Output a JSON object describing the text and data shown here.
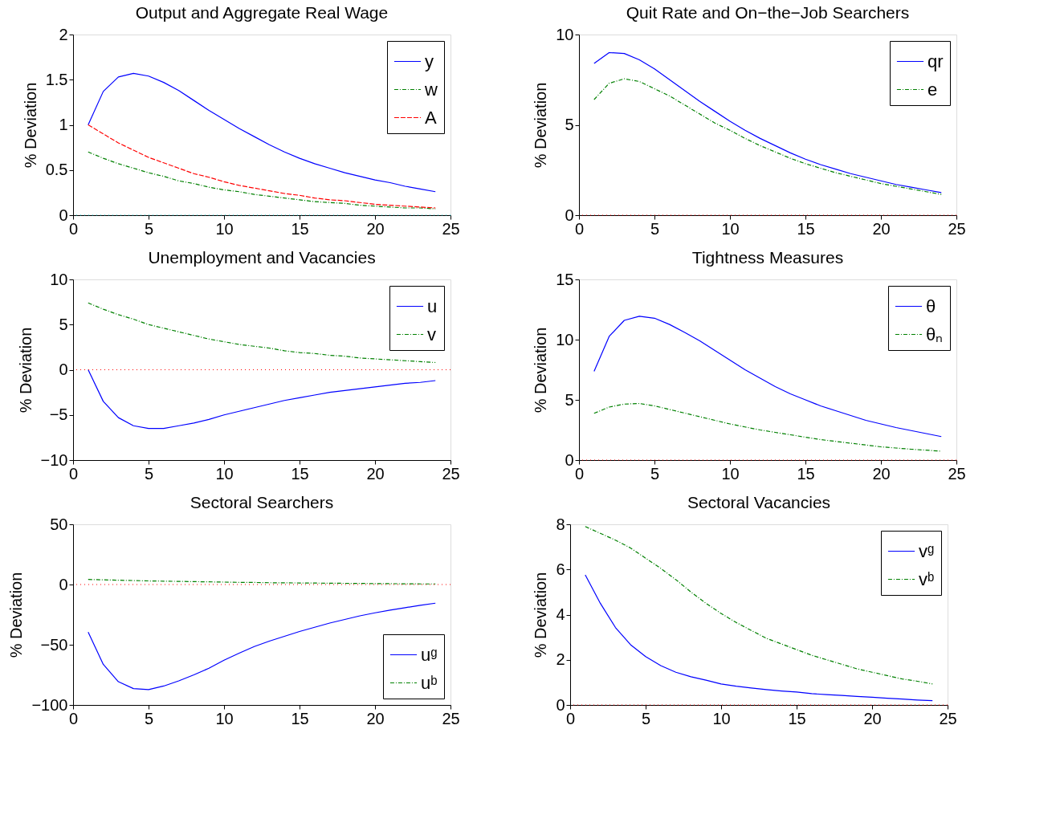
{
  "chart_data": [
    {
      "type": "line",
      "title": "Output and Aggregate Real Wage",
      "ylabel": "% Deviation",
      "x": [
        1,
        2,
        3,
        4,
        5,
        6,
        7,
        8,
        9,
        10,
        11,
        12,
        13,
        14,
        15,
        16,
        17,
        18,
        19,
        20,
        21,
        22,
        23,
        24
      ],
      "xlim": [
        0,
        25
      ],
      "xticks": [
        0,
        5,
        10,
        15,
        20,
        25
      ],
      "ylim": [
        0,
        2
      ],
      "yticks": [
        0,
        0.5,
        1,
        1.5,
        2
      ],
      "grid": false,
      "legend": "top right",
      "marker": "none",
      "series": [
        {
          "name": "y",
          "color": "#0000ff",
          "line_style": "solid",
          "values": [
            1.0,
            1.37,
            1.53,
            1.57,
            1.54,
            1.47,
            1.38,
            1.27,
            1.16,
            1.06,
            0.96,
            0.87,
            0.78,
            0.7,
            0.63,
            0.57,
            0.52,
            0.47,
            0.43,
            0.39,
            0.36,
            0.32,
            0.29,
            0.26
          ]
        },
        {
          "name": "w",
          "color": "#008000",
          "line_style": "dashdot",
          "values": [
            0.7,
            0.63,
            0.57,
            0.52,
            0.47,
            0.43,
            0.38,
            0.35,
            0.31,
            0.28,
            0.26,
            0.23,
            0.21,
            0.19,
            0.17,
            0.15,
            0.14,
            0.13,
            0.11,
            0.1,
            0.09,
            0.08,
            0.08,
            0.07
          ]
        },
        {
          "name": "A",
          "color": "#ff0000",
          "line_style": "dashed",
          "values": [
            1.0,
            0.9,
            0.8,
            0.72,
            0.64,
            0.58,
            0.52,
            0.46,
            0.42,
            0.37,
            0.33,
            0.3,
            0.27,
            0.24,
            0.22,
            0.19,
            0.17,
            0.16,
            0.14,
            0.12,
            0.11,
            0.1,
            0.09,
            0.08
          ]
        }
      ],
      "ref_lines": [
        {
          "axis": "y",
          "value": 0,
          "color": "#00bfbf",
          "line_style": "dotted"
        }
      ]
    },
    {
      "type": "line",
      "title": "Quit Rate and On−the−Job Searchers",
      "ylabel": "% Deviation",
      "x": [
        1,
        2,
        3,
        4,
        5,
        6,
        7,
        8,
        9,
        10,
        11,
        12,
        13,
        14,
        15,
        16,
        17,
        18,
        19,
        20,
        21,
        22,
        23,
        24
      ],
      "xlim": [
        0,
        25
      ],
      "xticks": [
        0,
        5,
        10,
        15,
        20,
        25
      ],
      "ylim": [
        0,
        10
      ],
      "yticks": [
        0,
        5,
        10
      ],
      "grid": false,
      "legend": "top right",
      "marker": "none",
      "series": [
        {
          "name": "qr",
          "color": "#0000ff",
          "line_style": "solid",
          "values": [
            8.4,
            9.0,
            8.95,
            8.6,
            8.1,
            7.5,
            6.9,
            6.3,
            5.75,
            5.2,
            4.7,
            4.25,
            3.85,
            3.45,
            3.1,
            2.8,
            2.55,
            2.3,
            2.1,
            1.9,
            1.7,
            1.55,
            1.4,
            1.25
          ]
        },
        {
          "name": "e",
          "color": "#008000",
          "line_style": "dashdot",
          "values": [
            6.4,
            7.3,
            7.55,
            7.4,
            7.0,
            6.6,
            6.1,
            5.6,
            5.1,
            4.7,
            4.25,
            3.85,
            3.5,
            3.15,
            2.85,
            2.6,
            2.35,
            2.15,
            1.95,
            1.75,
            1.6,
            1.45,
            1.3,
            1.15
          ]
        }
      ],
      "ref_lines": [
        {
          "axis": "y",
          "value": 0,
          "color": "#ff0000",
          "line_style": "dotted"
        }
      ]
    },
    {
      "type": "line",
      "title": "Unemployment and Vacancies",
      "ylabel": "% Deviation",
      "x": [
        1,
        2,
        3,
        4,
        5,
        6,
        7,
        8,
        9,
        10,
        11,
        12,
        13,
        14,
        15,
        16,
        17,
        18,
        19,
        20,
        21,
        22,
        23,
        24
      ],
      "xlim": [
        0,
        25
      ],
      "xticks": [
        0,
        5,
        10,
        15,
        20,
        25
      ],
      "ylim": [
        -10,
        10
      ],
      "yticks": [
        -10,
        -5,
        0,
        5,
        10
      ],
      "grid": false,
      "legend": "top right",
      "marker": "none",
      "series": [
        {
          "name": "u",
          "color": "#0000ff",
          "line_style": "solid",
          "values": [
            0,
            -3.5,
            -5.3,
            -6.2,
            -6.5,
            -6.5,
            -6.2,
            -5.9,
            -5.5,
            -5.0,
            -4.6,
            -4.2,
            -3.8,
            -3.4,
            -3.1,
            -2.8,
            -2.5,
            -2.3,
            -2.1,
            -1.9,
            -1.7,
            -1.5,
            -1.4,
            -1.2
          ]
        },
        {
          "name": "v",
          "color": "#008000",
          "line_style": "dashdot",
          "values": [
            7.4,
            6.7,
            6.1,
            5.6,
            5.0,
            4.6,
            4.2,
            3.8,
            3.4,
            3.1,
            2.8,
            2.6,
            2.4,
            2.1,
            1.9,
            1.8,
            1.6,
            1.5,
            1.3,
            1.2,
            1.1,
            1.0,
            0.9,
            0.8
          ]
        }
      ],
      "ref_lines": [
        {
          "axis": "y",
          "value": 0,
          "color": "#ff0000",
          "line_style": "dotted"
        }
      ]
    },
    {
      "type": "line",
      "title": "Tightness Measures",
      "ylabel": "% Deviation",
      "x": [
        1,
        2,
        3,
        4,
        5,
        6,
        7,
        8,
        9,
        10,
        11,
        12,
        13,
        14,
        15,
        16,
        17,
        18,
        19,
        20,
        21,
        22,
        23,
        24
      ],
      "xlim": [
        0,
        25
      ],
      "xticks": [
        0,
        5,
        10,
        15,
        20,
        25
      ],
      "ylim": [
        0,
        15
      ],
      "yticks": [
        0,
        5,
        10,
        15
      ],
      "grid": false,
      "legend": "top right",
      "marker": "none",
      "series": [
        {
          "name": "θ",
          "color": "#0000ff",
          "line_style": "solid",
          "values": [
            7.36,
            10.27,
            11.6,
            11.94,
            11.78,
            11.26,
            10.6,
            9.9,
            9.1,
            8.3,
            7.5,
            6.8,
            6.1,
            5.5,
            5.0,
            4.5,
            4.1,
            3.7,
            3.3,
            3.0,
            2.7,
            2.45,
            2.2,
            1.95
          ]
        },
        {
          "name": "θₙ",
          "color": "#008000",
          "line_style": "dashdot",
          "values": [
            3.88,
            4.4,
            4.65,
            4.7,
            4.5,
            4.2,
            3.9,
            3.6,
            3.3,
            3.0,
            2.75,
            2.5,
            2.3,
            2.1,
            1.9,
            1.7,
            1.55,
            1.4,
            1.25,
            1.1,
            1.0,
            0.9,
            0.82,
            0.74
          ]
        }
      ],
      "ref_lines": [
        {
          "axis": "y",
          "value": 0,
          "color": "#ff0000",
          "line_style": "dotted"
        }
      ]
    },
    {
      "type": "line",
      "title": "Sectoral Searchers",
      "ylabel": "% Deviation",
      "x": [
        1,
        2,
        3,
        4,
        5,
        6,
        7,
        8,
        9,
        10,
        11,
        12,
        13,
        14,
        15,
        16,
        17,
        18,
        19,
        20,
        21,
        22,
        23,
        24
      ],
      "xlim": [
        0,
        25
      ],
      "xticks": [
        0,
        5,
        10,
        15,
        20,
        25
      ],
      "ylim": [
        -100,
        50
      ],
      "yticks": [
        -100,
        -50,
        0,
        50
      ],
      "grid": false,
      "legend": "bottom right",
      "marker": "none",
      "series": [
        {
          "name": "uᵍ",
          "color": "#0000ff",
          "line_style": "solid",
          "values": [
            -39.5,
            -66.3,
            -80.7,
            -86.4,
            -87.2,
            -84.3,
            -80,
            -75,
            -69.5,
            -62.8,
            -57,
            -51.5,
            -47,
            -43,
            -39,
            -35.5,
            -32,
            -29,
            -26,
            -23.5,
            -21.3,
            -19.2,
            -17.3,
            -15.5
          ]
        },
        {
          "name": "uᵇ",
          "color": "#008000",
          "line_style": "dashdot",
          "values": [
            4.2,
            3.9,
            3.6,
            3.3,
            3.0,
            2.8,
            2.6,
            2.4,
            2.2,
            2.0,
            1.8,
            1.7,
            1.5,
            1.4,
            1.3,
            1.2,
            1.1,
            1.0,
            0.9,
            0.8,
            0.7,
            0.6,
            0.5,
            0.5
          ]
        }
      ],
      "ref_lines": [
        {
          "axis": "y",
          "value": 0,
          "color": "#ff0000",
          "line_style": "dotted"
        }
      ]
    },
    {
      "type": "line",
      "title": "Sectoral Vacancies",
      "ylabel": "% Deviation",
      "x": [
        1,
        2,
        3,
        4,
        5,
        6,
        7,
        8,
        9,
        10,
        11,
        12,
        13,
        14,
        15,
        16,
        17,
        18,
        19,
        20,
        21,
        22,
        23,
        24
      ],
      "xlim": [
        0,
        25
      ],
      "xticks": [
        0,
        5,
        10,
        15,
        20,
        25
      ],
      "ylim": [
        0,
        8
      ],
      "yticks": [
        0,
        2,
        4,
        6,
        8
      ],
      "grid": false,
      "legend": "top right",
      "marker": "none",
      "series": [
        {
          "name": "vᵍ",
          "color": "#0000ff",
          "line_style": "solid",
          "values": [
            5.76,
            4.5,
            3.43,
            2.67,
            2.14,
            1.74,
            1.45,
            1.25,
            1.1,
            0.93,
            0.83,
            0.75,
            0.68,
            0.62,
            0.57,
            0.5,
            0.46,
            0.42,
            0.38,
            0.34,
            0.3,
            0.26,
            0.22,
            0.19
          ]
        },
        {
          "name": "vᵇ",
          "color": "#008000",
          "line_style": "dashdot",
          "values": [
            7.9,
            7.6,
            7.3,
            6.95,
            6.5,
            6.05,
            5.55,
            5.0,
            4.5,
            4.05,
            3.65,
            3.3,
            2.95,
            2.7,
            2.45,
            2.2,
            2.0,
            1.8,
            1.6,
            1.45,
            1.3,
            1.15,
            1.05,
            0.93
          ]
        }
      ],
      "ref_lines": [
        {
          "axis": "y",
          "value": 0,
          "color": "#ff0000",
          "line_style": "dotted"
        }
      ]
    }
  ]
}
